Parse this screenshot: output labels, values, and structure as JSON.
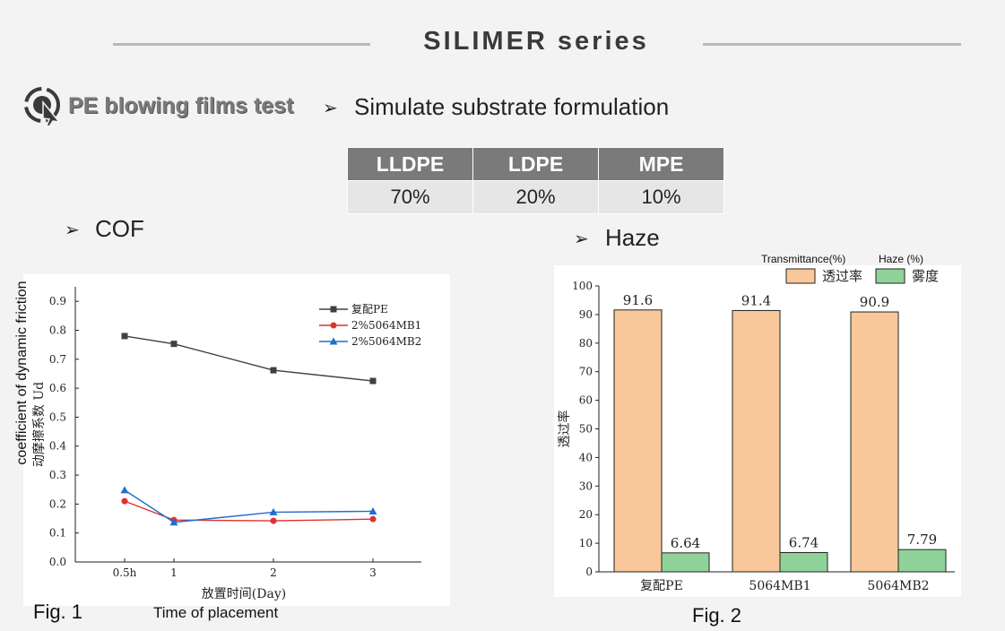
{
  "header": {
    "title": "SILIMER series"
  },
  "section": {
    "label": "PE blowing films test",
    "logo_icon": "cursor-click-icon"
  },
  "formulation": {
    "heading": "Simulate substrate formulation",
    "columns": [
      "LLDPE",
      "LDPE",
      "MPE"
    ],
    "values": [
      "70%",
      "20%",
      "10%"
    ]
  },
  "cof": {
    "heading": "COF",
    "y_label_en": "coefficient of dynamic friction",
    "y_label_cn": "动摩擦系数 Ud",
    "x_label_cn": "放置时间(Day)",
    "x_label_en": "Time of placement",
    "fig_label": "Fig. 1"
  },
  "haze": {
    "heading": "Haze",
    "legend_transmittance_en": "Transmittance(%)",
    "legend_haze_en": "Haze (%)",
    "y_label_cn": "透过率",
    "fig_label": "Fig. 2"
  },
  "colors": {
    "series1": "#404040",
    "series2": "#e03030",
    "series3": "#1f6fd0",
    "bar_trans": "#f8c89a",
    "bar_haze": "#8fd39a",
    "header_cell": "#7a7a7a"
  },
  "chart_data": [
    {
      "type": "line",
      "x": [
        "0.5h",
        "1",
        "2",
        "3"
      ],
      "series": [
        {
          "name": "复配PE",
          "values": [
            0.78,
            0.753,
            0.662,
            0.625
          ]
        },
        {
          "name": "2%5064MB1",
          "values": [
            0.21,
            0.145,
            0.142,
            0.148
          ]
        },
        {
          "name": "2%5064MB2",
          "values": [
            0.248,
            0.137,
            0.172,
            0.175
          ]
        }
      ],
      "ylim": [
        0,
        0.95
      ],
      "yticks": [
        "0.0",
        "0.1",
        "0.2",
        "0.3",
        "0.4",
        "0.5",
        "0.6",
        "0.7",
        "0.8",
        "0.9"
      ],
      "legend": "top-right",
      "grid": false
    },
    {
      "type": "bar",
      "categories": [
        "复配PE",
        "5064MB1",
        "5064MB2"
      ],
      "series": [
        {
          "name": "透过率",
          "values": [
            91.6,
            91.4,
            90.9
          ],
          "labels": [
            "91.6",
            "91.4",
            "90.9"
          ]
        },
        {
          "name": "雾度",
          "values": [
            6.64,
            6.74,
            7.79
          ],
          "labels": [
            "6.64",
            "6.74",
            "7.79"
          ]
        }
      ],
      "ylim": [
        0,
        100
      ],
      "yticks": [
        "0",
        "10",
        "20",
        "30",
        "40",
        "50",
        "60",
        "70",
        "80",
        "90",
        "100"
      ],
      "legend": "top-right",
      "grid": false
    }
  ]
}
